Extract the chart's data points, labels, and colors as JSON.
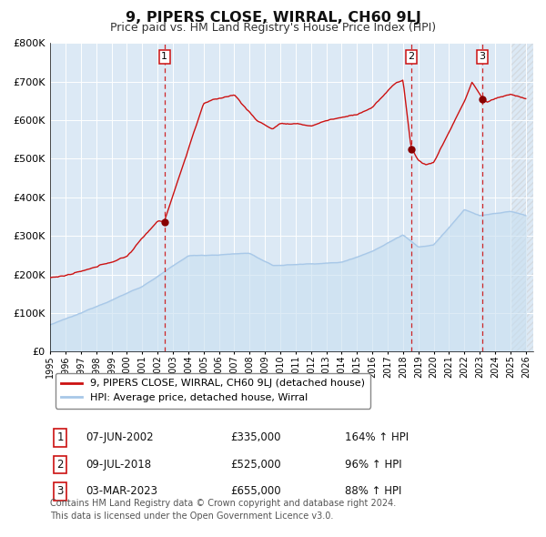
{
  "title": "9, PIPERS CLOSE, WIRRAL, CH60 9LJ",
  "subtitle": "Price paid vs. HM Land Registry's House Price Index (HPI)",
  "title_fontsize": 11.5,
  "subtitle_fontsize": 9,
  "background_color": "#ffffff",
  "plot_bg_color": "#dce9f5",
  "grid_color": "#ffffff",
  "ylim": [
    0,
    800000
  ],
  "xlim_start": 1995.0,
  "xlim_end": 2026.5,
  "hpi_color": "#a8c8e8",
  "hpi_fill_color": "#c8dff0",
  "price_color": "#cc1111",
  "sale_marker_color": "#880000",
  "dashed_line_color": "#cc1111",
  "legend_label_price": "9, PIPERS CLOSE, WIRRAL, CH60 9LJ (detached house)",
  "legend_label_hpi": "HPI: Average price, detached house, Wirral",
  "sales": [
    {
      "num": 1,
      "date": "07-JUN-2002",
      "price": 335000,
      "pct": "164%",
      "year": 2002.44
    },
    {
      "num": 2,
      "date": "09-JUL-2018",
      "price": 525000,
      "pct": "96%",
      "year": 2018.52
    },
    {
      "num": 3,
      "date": "03-MAR-2023",
      "price": 655000,
      "pct": "88%",
      "year": 2023.17
    }
  ],
  "footer": "Contains HM Land Registry data © Crown copyright and database right 2024.\nThis data is licensed under the Open Government Licence v3.0.",
  "footer_fontsize": 7.0
}
